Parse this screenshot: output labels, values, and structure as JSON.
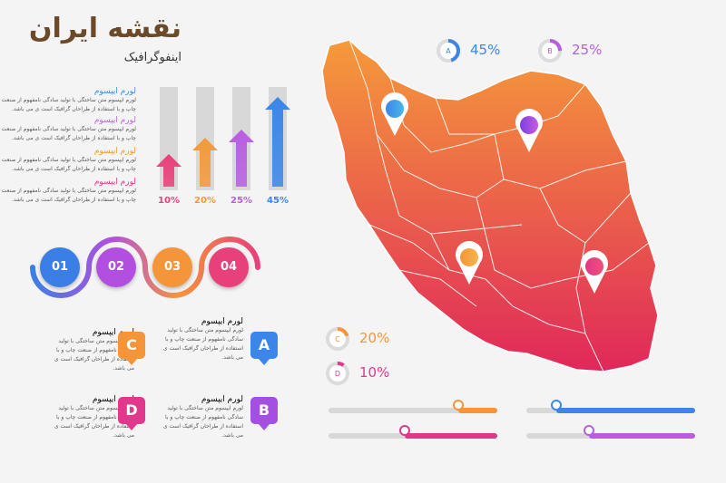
{
  "title": "نقشه ایران",
  "subtitle": "اینفوگرافیک",
  "text_blocks": [
    {
      "heading": "لورم ایپسوم",
      "color": "#3a8fe0",
      "lines": [
        "لورم ایپسوم متن ساختگی با تولید سادگی نامفهوم از صنعت",
        "چاپ و با استفاده از طراحان گرافیک است ی می باشد."
      ]
    },
    {
      "heading": "لورم ایپسوم",
      "color": "#b86ad6",
      "lines": [
        "لورم ایپسوم متن ساختگی با تولید سادگی نامفهوم از صنعت",
        "چاپ و با استفاده از طراحان گرافیک است ی می باشد."
      ]
    },
    {
      "heading": "لورم ایپسوم",
      "color": "#f29a2e",
      "lines": [
        "لورم ایپسوم متن ساختگی با تولید سادگی نامفهوم از صنعت",
        "چاپ و با استفاده از طراحان گرافیک است ی می باشد."
      ]
    },
    {
      "heading": "لورم ایپسوم",
      "color": "#e0388a",
      "lines": [
        "لورم ایپسوم متن ساختگی با تولید سادگی نامفهوم از صنعت",
        "چاپ و با استفاده از طراحان گرافیک است ی می باشد."
      ]
    }
  ],
  "arrow_bars": [
    {
      "label": "10%",
      "value": 10,
      "color": "#e8407a"
    },
    {
      "label": "20%",
      "value": 20,
      "color": "#f39a3a"
    },
    {
      "label": "25%",
      "value": 25,
      "color": "#b85ee0"
    },
    {
      "label": "45%",
      "value": 45,
      "color": "#3b86e8"
    }
  ],
  "steps": [
    {
      "label": "01",
      "color": "#3b7fe6"
    },
    {
      "label": "02",
      "color": "#b24fe0"
    },
    {
      "label": "03",
      "color": "#f5953a"
    },
    {
      "label": "04",
      "color": "#e8407a"
    }
  ],
  "cards": [
    {
      "letter": "C",
      "heading": "لورم ایپسوم",
      "color": "#f5953a",
      "lines": [
        "لورم ایپسوم متن ساختگی با تولید",
        "سادگی نامفهوم از صنعت چاپ و با",
        "استفاده از طراحان گرافیک است ی",
        "می باشد."
      ]
    },
    {
      "letter": "A",
      "heading": "لورم ایپسوم",
      "color": "#3b86e8",
      "lines": [
        "لورم ایپسوم متن ساختگی با تولید",
        "سادگی نامفهوم از صنعت چاپ و با",
        "استفاده از طراحان گرافیک است ی",
        "می باشد."
      ]
    },
    {
      "letter": "D",
      "heading": "لورم ایپسوم",
      "color": "#e0388a",
      "lines": [
        "لورم ایپسوم متن ساختگی با تولید",
        "سادگی نامفهوم از صنعت چاپ و با",
        "استفاده از طراحان گرافیک است ی",
        "می باشد."
      ]
    },
    {
      "letter": "B",
      "heading": "لورم ایپسوم",
      "color": "#a54fe0",
      "lines": [
        "لورم ایپسوم متن ساختگی با تولید",
        "سادگی نامفهوم از صنعت چاپ و با",
        "استفاده از طراحان گرافیک است ی",
        "می باشد."
      ]
    }
  ],
  "legend": [
    {
      "letter": "A",
      "pct": "45%",
      "value": 45,
      "color": "#3b86e8"
    },
    {
      "letter": "B",
      "pct": "25%",
      "value": 25,
      "color": "#b85ee0"
    },
    {
      "letter": "C",
      "pct": "20%",
      "value": 20,
      "color": "#f5953a"
    },
    {
      "letter": "D",
      "pct": "10%",
      "value": 10,
      "color": "#e0388a"
    }
  ],
  "sliders": [
    {
      "value": 0.77,
      "color": "#f5953a"
    },
    {
      "value": 0.18,
      "color": "#3b86e8"
    },
    {
      "value": 0.45,
      "color": "#e0388a"
    },
    {
      "value": 0.37,
      "color": "#b85ee0"
    }
  ],
  "map": {
    "name": "iran-map",
    "gradient_top": "#f59a3a",
    "gradient_bottom": "#e0285a"
  }
}
